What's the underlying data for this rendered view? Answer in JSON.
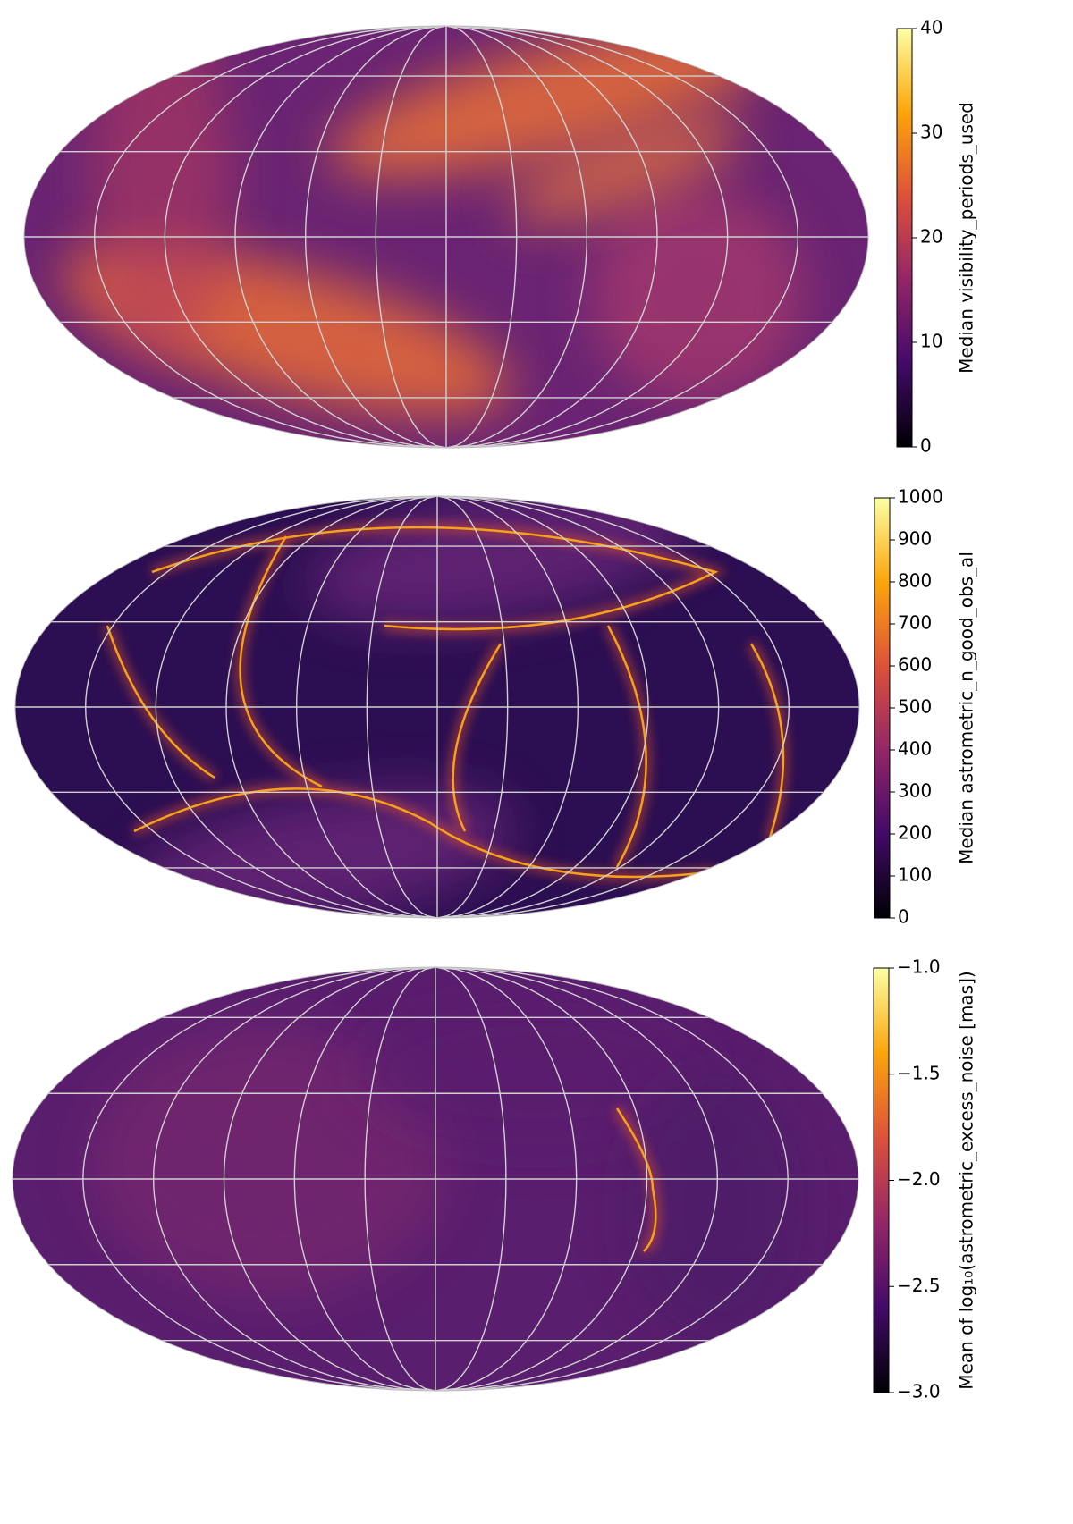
{
  "chart_data": [
    {
      "type": "skymap",
      "colorbar_label": "Median visibility_periods_used",
      "clim": [
        0,
        40
      ],
      "cticks": [
        0,
        10,
        20,
        30,
        40
      ],
      "grid": true,
      "colormap": [
        "#000004",
        "#420a68",
        "#932667",
        "#dd513a",
        "#fca50a",
        "#fcffa4"
      ]
    },
    {
      "type": "skymap",
      "colorbar_label": "Median astrometric_n_good_obs_al",
      "clim": [
        0,
        1000
      ],
      "cticks": [
        0,
        100,
        200,
        300,
        400,
        500,
        600,
        700,
        800,
        900,
        1000
      ],
      "grid": true,
      "colormap": [
        "#000004",
        "#420a68",
        "#932667",
        "#dd513a",
        "#fca50a",
        "#fcffa4"
      ]
    },
    {
      "type": "skymap",
      "colorbar_label": "Mean of log₁₀(astrometric_excess_noise [mas])",
      "clim": [
        -3,
        -1
      ],
      "cticks": [
        {
          "value": -3,
          "label": "−3.0"
        },
        {
          "value": -2.5,
          "label": "−2.5"
        },
        {
          "value": -2,
          "label": "−2.0"
        },
        {
          "value": -1.5,
          "label": "−1.5"
        },
        {
          "value": -1,
          "label": "−1.0"
        }
      ],
      "grid": true,
      "colormap": [
        "#000004",
        "#420a68",
        "#932667",
        "#dd513a",
        "#fca50a",
        "#fcffa4"
      ]
    }
  ]
}
